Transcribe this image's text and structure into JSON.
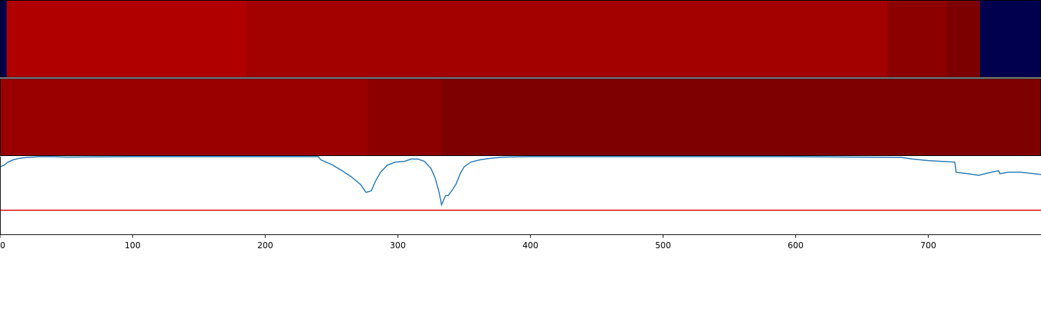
{
  "chart_data": {
    "type": "heatmap",
    "xlim": [
      0,
      785
    ],
    "x_ticks": [
      0,
      100,
      200,
      300,
      400,
      500,
      600,
      700
    ],
    "x_tick_labels": [
      "0",
      "100",
      "200",
      "300",
      "400",
      "500",
      "600",
      "700"
    ],
    "grid": false,
    "legend": "none",
    "segment_bands": [
      {
        "name": "band-top",
        "segments": [
          {
            "start": 0,
            "end": 5,
            "color": "#00004f"
          },
          {
            "start": 5,
            "end": 186,
            "color": "#b00000"
          },
          {
            "start": 186,
            "end": 669,
            "color": "#a30000"
          },
          {
            "start": 669,
            "end": 714,
            "color": "#8c0000"
          },
          {
            "start": 714,
            "end": 739,
            "color": "#7d0000"
          },
          {
            "start": 739,
            "end": 785,
            "color": "#00004f"
          }
        ]
      },
      {
        "name": "band-middle",
        "segments": [
          {
            "start": 0,
            "end": 277,
            "color": "#9a0000"
          },
          {
            "start": 277,
            "end": 333,
            "color": "#8c0000"
          },
          {
            "start": 333,
            "end": 785,
            "color": "#7f0000"
          }
        ]
      }
    ],
    "line_panel": {
      "ylim": [
        0,
        1
      ],
      "threshold": 0.31,
      "threshold_color": "#e00000",
      "line_color": "#1f77b4",
      "series": [
        {
          "x": [
            0,
            3,
            6,
            10,
            15,
            20,
            30,
            40,
            50,
            100,
            200,
            240,
            242,
            250,
            258,
            265,
            272,
            276,
            280,
            283,
            287,
            292,
            298,
            305,
            310,
            315,
            320,
            325,
            328,
            331,
            333,
            336,
            338,
            341,
            344,
            347,
            350,
            355,
            362,
            370,
            380,
            400,
            500,
            600,
            680,
            688,
            700,
            710,
            720,
            721,
            730,
            738,
            745,
            753,
            754,
            760,
            770,
            785
          ],
          "y": [
            0.87,
            0.89,
            0.93,
            0.96,
            0.98,
            0.99,
            1.0,
            1.0,
            0.995,
            1.0,
            1.0,
            1.0,
            0.96,
            0.9,
            0.82,
            0.74,
            0.64,
            0.54,
            0.56,
            0.68,
            0.8,
            0.89,
            0.93,
            0.94,
            0.97,
            0.97,
            0.94,
            0.85,
            0.73,
            0.55,
            0.38,
            0.5,
            0.5,
            0.57,
            0.65,
            0.78,
            0.87,
            0.93,
            0.96,
            0.98,
            0.995,
            1.0,
            1.0,
            1.0,
            0.99,
            0.97,
            0.95,
            0.94,
            0.93,
            0.8,
            0.78,
            0.76,
            0.79,
            0.82,
            0.78,
            0.8,
            0.8,
            0.77
          ]
        }
      ]
    }
  }
}
